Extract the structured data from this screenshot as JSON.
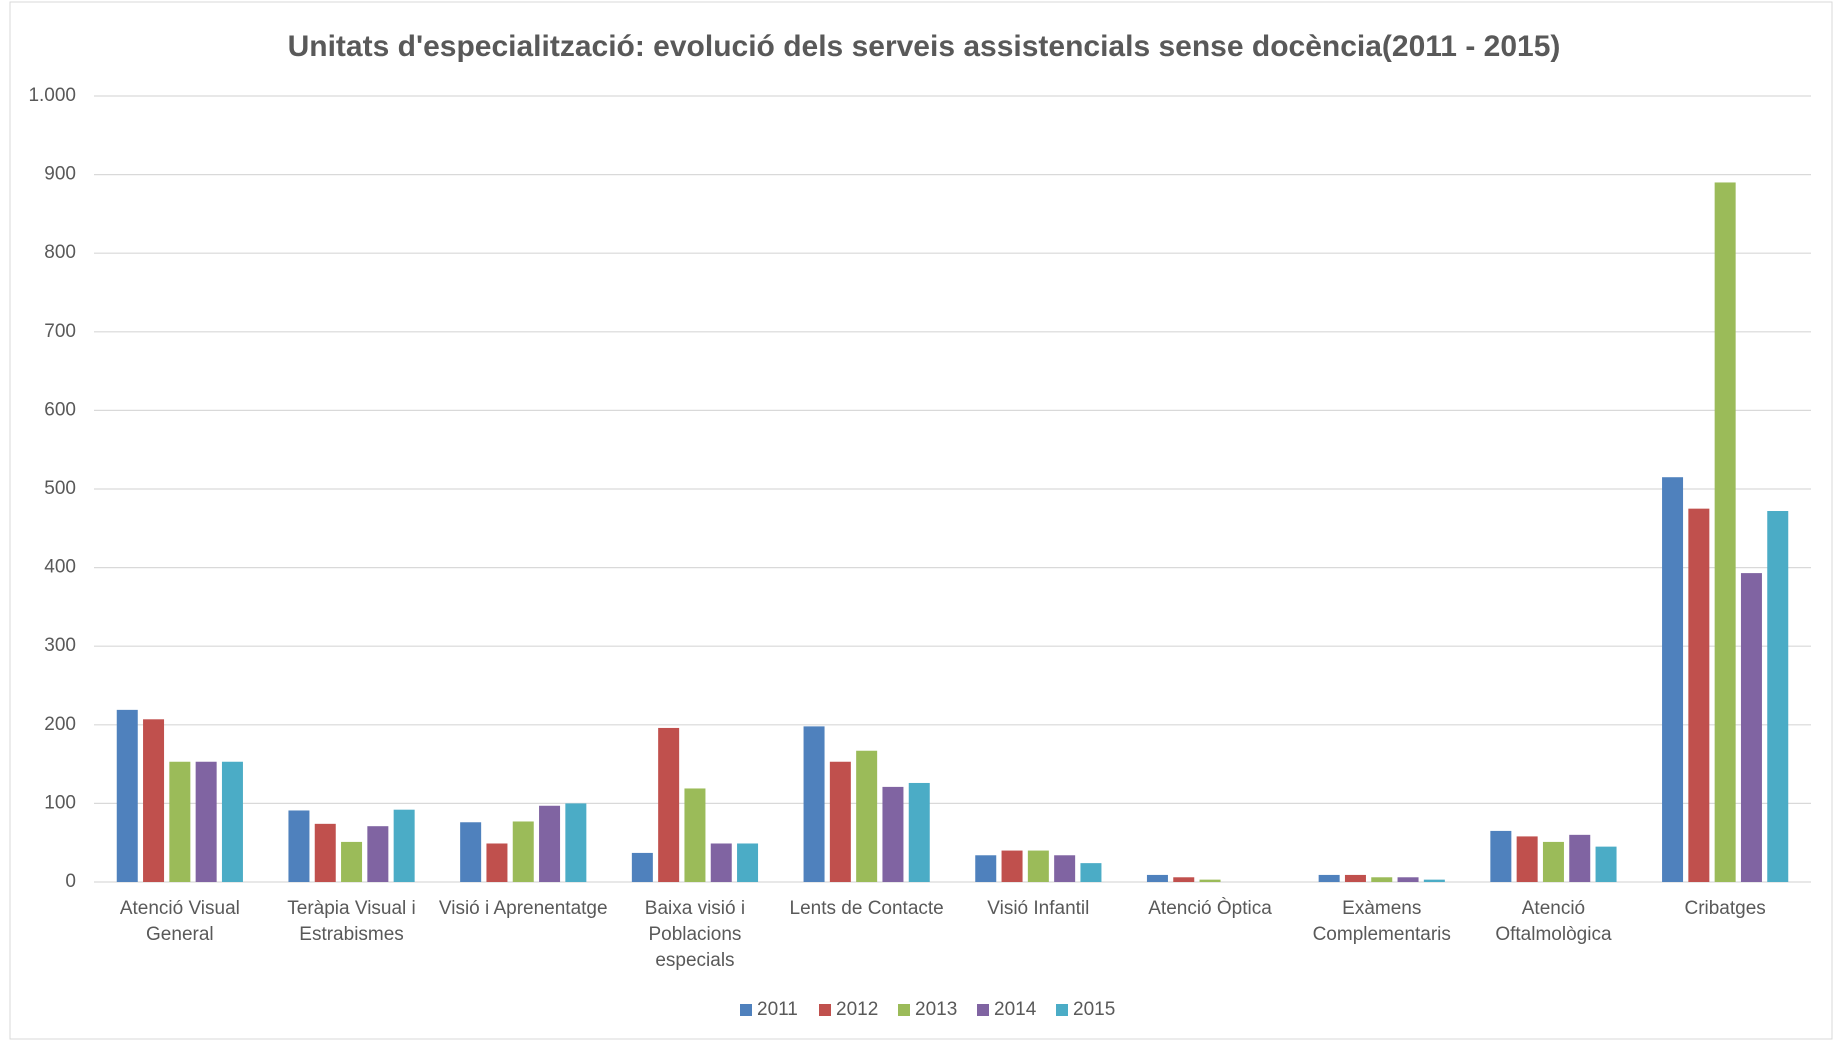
{
  "chart_data": {
    "type": "bar",
    "title": "Unitats d'especialització: evolució dels serveis assistencials  sense docència(2011 - 2015)",
    "categories": [
      "Atenció Visual General",
      "Teràpia Visual i Estrabismes",
      "Visió i Aprenentatge",
      "Baixa visió i Poblacions especials",
      "Lents de Contacte",
      "Visió Infantil",
      "Atenció Òptica",
      "Exàmens Complementaris",
      "Atenció Oftalmològica",
      "Cribatges"
    ],
    "series": [
      {
        "name": "2011",
        "color": "#4f81bd",
        "values": [
          219,
          91,
          76,
          37,
          198,
          34,
          9,
          9,
          65,
          515
        ]
      },
      {
        "name": "2012",
        "color": "#c0504d",
        "values": [
          207,
          74,
          49,
          196,
          153,
          40,
          6,
          9,
          58,
          475
        ]
      },
      {
        "name": "2013",
        "color": "#9bbb59",
        "values": [
          153,
          51,
          77,
          119,
          167,
          40,
          3,
          6,
          51,
          890
        ]
      },
      {
        "name": "2014",
        "color": "#8064a2",
        "values": [
          153,
          71,
          97,
          49,
          121,
          34,
          0,
          6,
          60,
          393
        ]
      },
      {
        "name": "2015",
        "color": "#4bacc6",
        "values": [
          153,
          92,
          100,
          49,
          126,
          24,
          0,
          3,
          45,
          472
        ]
      }
    ],
    "ylim": [
      0,
      1000
    ],
    "yticks": [
      0,
      100,
      200,
      300,
      400,
      500,
      600,
      700,
      800,
      900,
      {
        "value": 1000,
        "label": "1.000"
      }
    ],
    "grid": true,
    "legend": "bottom"
  }
}
